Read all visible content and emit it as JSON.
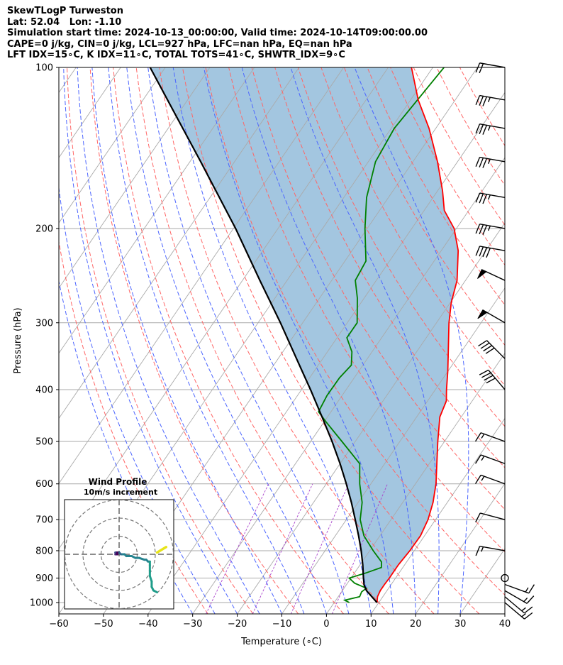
{
  "header": {
    "lines": [
      "SkewTLogP Turweston",
      "Lat: 52.04   Lon: -1.10",
      "Simulation start time: 2024-10-13_00:00:00, Valid time: 2024-10-14T09:00:00.00",
      "CAPE=0 j/kg, CIN=0 j/kg, LCL=927 hPa, LFC=nan hPa, EQ=nan hPa",
      "LFT IDX=15∘C, K IDX=11∘C, TOTAL TOTS=41∘C, SHWTR_IDX=9∘C"
    ]
  },
  "chart_data": [
    {
      "type": "line",
      "chart_kind": "skew-T log-P diagram",
      "xlabel": "Temperature (∘C)",
      "ylabel": "Pressure (hPa)",
      "xlim": [
        -60,
        40
      ],
      "ylim": [
        1050,
        100
      ],
      "y_scale": "log",
      "x_ticks": [
        "−60",
        "−50",
        "−40",
        "−30",
        "−20",
        "−10",
        "0",
        "10",
        "20",
        "30",
        "40"
      ],
      "y_ticks": [
        "100",
        "200",
        "300",
        "400",
        "500",
        "600",
        "700",
        "800",
        "900",
        "1000"
      ],
      "grid": true,
      "series": [
        {
          "name": "temperature",
          "color": "#ff0000",
          "points": [
            [
              1000,
              9.6
            ],
            [
              975,
              8.8
            ],
            [
              950,
              8.5
            ],
            [
              925,
              8.5
            ],
            [
              900,
              8.6
            ],
            [
              850,
              8.6
            ],
            [
              800,
              9.0
            ],
            [
              750,
              9.1
            ],
            [
              700,
              8.3
            ],
            [
              650,
              6.8
            ],
            [
              600,
              4.6
            ],
            [
              550,
              1.7
            ],
            [
              500,
              -1.5
            ],
            [
              450,
              -4.8
            ],
            [
              420,
              -5.8
            ],
            [
              400,
              -7.5
            ],
            [
              370,
              -10.0
            ],
            [
              340,
              -12.9
            ],
            [
              300,
              -17.2
            ],
            [
              275,
              -19.8
            ],
            [
              250,
              -21.9
            ],
            [
              220,
              -26.2
            ],
            [
              200,
              -30.5
            ],
            [
              185,
              -35.5
            ],
            [
              170,
              -38.9
            ],
            [
              150,
              -44.5
            ],
            [
              130,
              -51.5
            ],
            [
              115,
              -58.3
            ],
            [
              100,
              -64.8
            ]
          ]
        },
        {
          "name": "dewpoint",
          "color": "#008000",
          "points": [
            [
              1000,
              3.4
            ],
            [
              990,
              2.0
            ],
            [
              975,
              4.8
            ],
            [
              955,
              4.5
            ],
            [
              940,
              5.0
            ],
            [
              920,
              1.6
            ],
            [
              900,
              -0.4
            ],
            [
              880,
              2.6
            ],
            [
              860,
              5.2
            ],
            [
              840,
              4.4
            ],
            [
              800,
              0.8
            ],
            [
              750,
              -3.6
            ],
            [
              700,
              -6.9
            ],
            [
              650,
              -9.1
            ],
            [
              600,
              -12.5
            ],
            [
              550,
              -15.6
            ],
            [
              500,
              -23.0
            ],
            [
              460,
              -29.5
            ],
            [
              440,
              -32.8
            ],
            [
              410,
              -33.4
            ],
            [
              380,
              -33.3
            ],
            [
              360,
              -32.6
            ],
            [
              340,
              -34.5
            ],
            [
              320,
              -37.8
            ],
            [
              300,
              -37.8
            ],
            [
              270,
              -41.5
            ],
            [
              250,
              -44.7
            ],
            [
              230,
              -45.3
            ],
            [
              200,
              -50.5
            ],
            [
              175,
              -54.9
            ],
            [
              150,
              -58.4
            ],
            [
              130,
              -59.3
            ],
            [
              100,
              -57.5
            ]
          ]
        },
        {
          "name": "parcel profile",
          "color": "#000000",
          "points": [
            [
              1000,
              9.6
            ],
            [
              950,
              5.4
            ],
            [
              927,
              4.0
            ],
            [
              900,
              2.8
            ],
            [
              850,
              0.6
            ],
            [
              800,
              -1.9
            ],
            [
              750,
              -4.8
            ],
            [
              700,
              -8.0
            ],
            [
              650,
              -11.5
            ],
            [
              600,
              -15.5
            ],
            [
              550,
              -20.0
            ],
            [
              500,
              -25.2
            ],
            [
              450,
              -31.2
            ],
            [
              400,
              -38.0
            ],
            [
              350,
              -45.9
            ],
            [
              300,
              -55.0
            ],
            [
              250,
              -66.1
            ],
            [
              200,
              -79.5
            ],
            [
              150,
              -97.6
            ],
            [
              100,
              -123.4
            ]
          ]
        }
      ],
      "shaded_region": {
        "between": [
          "parcel profile",
          "temperature"
        ],
        "color": "#a3c6e0"
      },
      "reference_lines": {
        "dry_adiabats_color": "#ff6666",
        "moist_adiabats_color": "#4d66ff",
        "mixing_ratio_color": "#aa44cc",
        "isotherm_color": "#aaaaaa"
      },
      "wind_barbs": [
        {
          "p": 1000,
          "speed_kt": 15,
          "dir_deg": 130
        },
        {
          "p": 975,
          "speed_kt": 15,
          "dir_deg": 130
        },
        {
          "p": 950,
          "speed_kt": 15,
          "dir_deg": 120
        },
        {
          "p": 925,
          "speed_kt": 15,
          "dir_deg": 110
        },
        {
          "p": 900,
          "speed_kt": 0,
          "dir_deg": 0,
          "calm": true
        },
        {
          "p": 800,
          "speed_kt": 15,
          "dir_deg": 280
        },
        {
          "p": 700,
          "speed_kt": 10,
          "dir_deg": 285
        },
        {
          "p": 600,
          "speed_kt": 15,
          "dir_deg": 290
        },
        {
          "p": 550,
          "speed_kt": 15,
          "dir_deg": 290
        },
        {
          "p": 500,
          "speed_kt": 15,
          "dir_deg": 290
        },
        {
          "p": 400,
          "speed_kt": 40,
          "dir_deg": 320
        },
        {
          "p": 350,
          "speed_kt": 40,
          "dir_deg": 315
        },
        {
          "p": 300,
          "speed_kt": 50,
          "dir_deg": 300
        },
        {
          "p": 250,
          "speed_kt": 50,
          "dir_deg": 295
        },
        {
          "p": 220,
          "speed_kt": 40,
          "dir_deg": 280
        },
        {
          "p": 200,
          "speed_kt": 35,
          "dir_deg": 280
        },
        {
          "p": 175,
          "speed_kt": 35,
          "dir_deg": 280
        },
        {
          "p": 150,
          "speed_kt": 35,
          "dir_deg": 280
        },
        {
          "p": 130,
          "speed_kt": 35,
          "dir_deg": 280
        },
        {
          "p": 115,
          "speed_kt": 35,
          "dir_deg": 280
        },
        {
          "p": 100,
          "speed_kt": 20,
          "dir_deg": 280
        }
      ]
    },
    {
      "type": "scatter",
      "chart_kind": "hodograph",
      "title": "Wind Profile",
      "subtitle": "10m/s increment",
      "ring_step_ms": 10,
      "colormap": "viridis",
      "uv_ms": [
        [
          21,
          -21
        ],
        [
          19,
          -20
        ],
        [
          18,
          -18
        ],
        [
          18,
          -15
        ],
        [
          17,
          -12
        ],
        [
          17,
          -9
        ],
        [
          17,
          -6
        ],
        [
          17,
          -4
        ],
        [
          16,
          -4
        ],
        [
          15,
          -3
        ],
        [
          14,
          -3
        ],
        [
          11,
          -2
        ],
        [
          9,
          -2
        ],
        [
          7,
          -1
        ],
        [
          4,
          -1
        ],
        [
          3,
          0
        ],
        [
          2,
          0
        ],
        [
          1,
          0
        ],
        [
          0,
          1
        ],
        [
          -1,
          1
        ],
        [
          -1,
          1
        ],
        [
          -1,
          1
        ],
        [
          -1,
          1
        ],
        [
          -1,
          1
        ],
        [
          -2,
          1
        ],
        [
          -2,
          1
        ],
        [
          -2,
          1
        ],
        [
          -1,
          1
        ],
        [
          -2,
          1
        ],
        [
          -2,
          1
        ],
        [
          -1,
          1
        ],
        [
          -1,
          1
        ],
        [
          -2,
          1
        ],
        [
          -2,
          0
        ],
        [
          -1,
          0
        ],
        [
          -1,
          0
        ],
        [
          -2,
          0
        ],
        [
          -2,
          0
        ],
        [
          -2,
          0
        ],
        [
          -1,
          0
        ],
        [
          -1,
          0
        ],
        [
          -2,
          0
        ],
        [
          -1,
          0
        ],
        [
          -1,
          0
        ],
        [
          -1,
          0
        ],
        [
          -1,
          0
        ],
        [
          -1,
          0
        ],
        [
          -1,
          0
        ],
        [
          -1,
          0
        ],
        [
          -1,
          1
        ],
        [
          -1,
          1
        ],
        [
          -1,
          1
        ]
      ],
      "extra_segment": {
        "color": "#e7e419",
        "uv_ms": [
          [
            21,
            1
          ],
          [
            26,
            4
          ]
        ]
      }
    }
  ]
}
